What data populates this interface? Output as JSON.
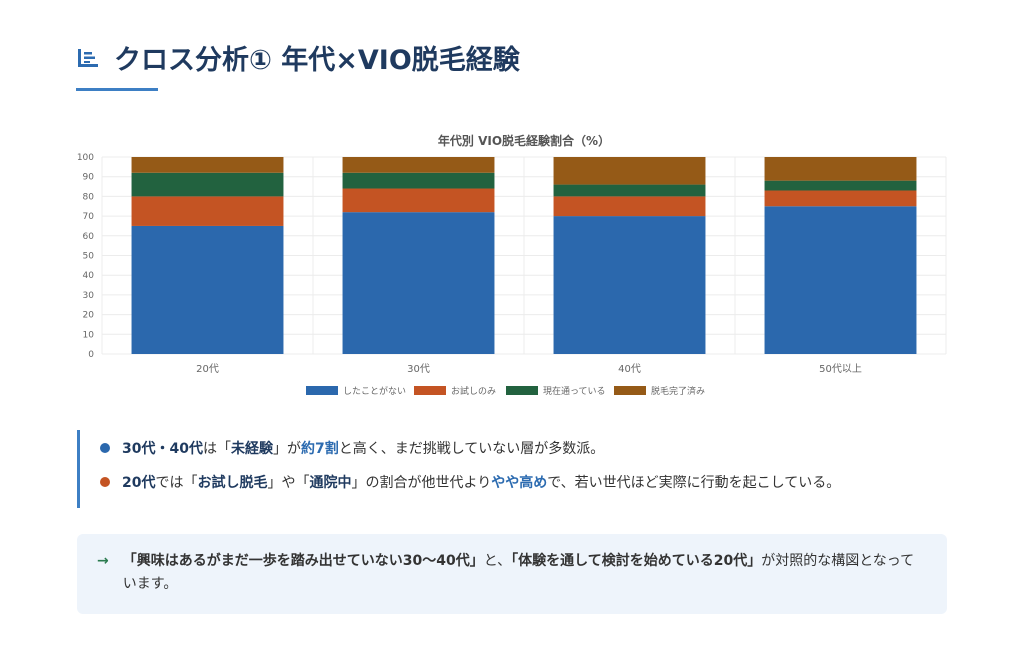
{
  "header": {
    "title": "クロス分析① 年代×VIO脱毛経験"
  },
  "chart_data": {
    "type": "bar",
    "stacked": true,
    "title": "年代別 VIO脱毛経験割合（%）",
    "categories": [
      "20代",
      "30代",
      "40代",
      "50代以上"
    ],
    "ylim": [
      0,
      100
    ],
    "yticks": [
      0,
      10,
      20,
      30,
      40,
      50,
      60,
      70,
      80,
      90,
      100
    ],
    "series": [
      {
        "name": "したことがない",
        "color": "#2b68ad",
        "values": [
          65,
          72,
          70,
          75
        ]
      },
      {
        "name": "お試しのみ",
        "color": "#c45423",
        "values": [
          15,
          12,
          10,
          8
        ]
      },
      {
        "name": "現在通っている",
        "color": "#22623f",
        "values": [
          12,
          8,
          6,
          5
        ]
      },
      {
        "name": "脱毛完了済み",
        "color": "#955a17",
        "values": [
          8,
          8,
          14,
          12
        ]
      }
    ],
    "legend": "bottom",
    "grid": true
  },
  "points": [
    {
      "color": "#2b68ad",
      "parts": [
        [
          "b",
          "30代・40代"
        ],
        [
          "t",
          "は「"
        ],
        [
          "b",
          "未経験"
        ],
        [
          "t",
          "」が"
        ],
        [
          "bh",
          "約7割"
        ],
        [
          "t",
          "と高く、まだ挑戦していない層が多数派。"
        ]
      ]
    },
    {
      "color": "#c45423",
      "parts": [
        [
          "b",
          "20代"
        ],
        [
          "t",
          "では「"
        ],
        [
          "b",
          "お試し脱毛"
        ],
        [
          "t",
          "」や「"
        ],
        [
          "b",
          "通院中"
        ],
        [
          "t",
          "」の割合が他世代より"
        ],
        [
          "bh",
          "やや高め"
        ],
        [
          "t",
          "で、若い世代ほど実際に行動を起こしている。"
        ]
      ]
    }
  ],
  "note": {
    "arrow": "→",
    "parts": [
      [
        "b",
        "「興味はあるがまだ一歩を踏み出せていない30〜40代」"
      ],
      [
        "t",
        "と、"
      ],
      [
        "b",
        "「体験を通して検討を始めている20代」"
      ],
      [
        "t",
        "が対照的な構図となっています。"
      ]
    ]
  }
}
